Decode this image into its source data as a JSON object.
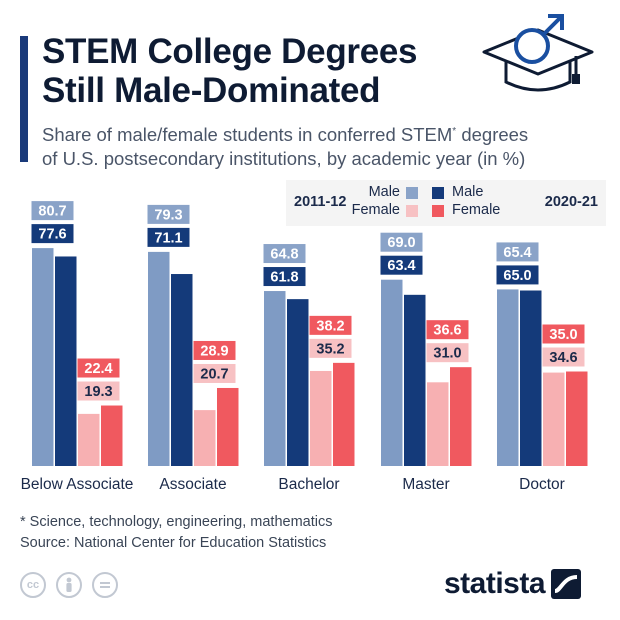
{
  "header": {
    "title_line1": "STEM College Degrees",
    "title_line2": "Still Male-Dominated",
    "subtitle_line1_a": "Share of male/female students in conferred STEM",
    "subtitle_sup": "*",
    "subtitle_line1_b": " degrees",
    "subtitle_line2": "of U.S. postsecondary institutions, by academic year (in %)"
  },
  "legend": {
    "left_year": "2011-12",
    "right_year": "2020-21",
    "male": "Male",
    "female": "Female"
  },
  "chart_data": {
    "type": "bar",
    "categories": [
      "Below Associate",
      "Associate",
      "Bachelor",
      "Master",
      "Doctor"
    ],
    "series": [
      {
        "name": "Male 2011-12",
        "values": [
          80.7,
          79.3,
          64.8,
          69.0,
          65.4
        ],
        "color": "#7f9bc4",
        "label_bg": "#8aa3c8"
      },
      {
        "name": "Male 2020-21",
        "values": [
          77.6,
          71.1,
          61.8,
          63.4,
          65.0
        ],
        "color": "#143a7a",
        "label_bg": "#143a7a"
      },
      {
        "name": "Female 2011-12",
        "values": [
          19.3,
          20.7,
          35.2,
          31.0,
          34.6
        ],
        "color": "#f7b0b2",
        "label_bg": "#f7c1c3"
      },
      {
        "name": "Female 2020-21",
        "values": [
          22.4,
          28.9,
          38.2,
          36.6,
          35.0
        ],
        "color": "#f0595f",
        "label_bg": "#f0595f"
      }
    ],
    "ylim": [
      0,
      100
    ],
    "grid": false
  },
  "footer": {
    "footnote": "* Science, technology, engineering, mathematics",
    "source": "Source: National Center for Education Statistics",
    "brand": "statista",
    "license_icons": [
      "cc-icon",
      "by-person-icon",
      "nd-equals-icon"
    ]
  }
}
